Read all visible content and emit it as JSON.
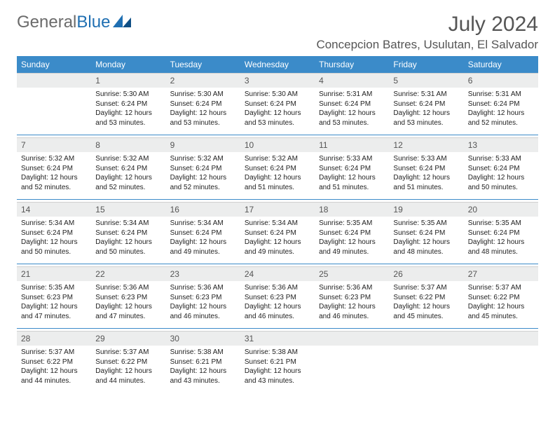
{
  "logo": {
    "part1": "General",
    "part2": "Blue"
  },
  "header": {
    "month_title": "July 2024",
    "location": "Concepcion Batres, Usulutan, El Salvador"
  },
  "colors": {
    "header_bg": "#3b8bc9",
    "header_text": "#ffffff",
    "daynum_bg": "#eceded",
    "accent": "#1f6fb2"
  },
  "weekdays": [
    "Sunday",
    "Monday",
    "Tuesday",
    "Wednesday",
    "Thursday",
    "Friday",
    "Saturday"
  ],
  "weeks": [
    {
      "nums": [
        "",
        "1",
        "2",
        "3",
        "4",
        "5",
        "6"
      ],
      "details": [
        "",
        "Sunrise: 5:30 AM\nSunset: 6:24 PM\nDaylight: 12 hours and 53 minutes.",
        "Sunrise: 5:30 AM\nSunset: 6:24 PM\nDaylight: 12 hours and 53 minutes.",
        "Sunrise: 5:30 AM\nSunset: 6:24 PM\nDaylight: 12 hours and 53 minutes.",
        "Sunrise: 5:31 AM\nSunset: 6:24 PM\nDaylight: 12 hours and 53 minutes.",
        "Sunrise: 5:31 AM\nSunset: 6:24 PM\nDaylight: 12 hours and 53 minutes.",
        "Sunrise: 5:31 AM\nSunset: 6:24 PM\nDaylight: 12 hours and 52 minutes."
      ]
    },
    {
      "nums": [
        "7",
        "8",
        "9",
        "10",
        "11",
        "12",
        "13"
      ],
      "details": [
        "Sunrise: 5:32 AM\nSunset: 6:24 PM\nDaylight: 12 hours and 52 minutes.",
        "Sunrise: 5:32 AM\nSunset: 6:24 PM\nDaylight: 12 hours and 52 minutes.",
        "Sunrise: 5:32 AM\nSunset: 6:24 PM\nDaylight: 12 hours and 52 minutes.",
        "Sunrise: 5:32 AM\nSunset: 6:24 PM\nDaylight: 12 hours and 51 minutes.",
        "Sunrise: 5:33 AM\nSunset: 6:24 PM\nDaylight: 12 hours and 51 minutes.",
        "Sunrise: 5:33 AM\nSunset: 6:24 PM\nDaylight: 12 hours and 51 minutes.",
        "Sunrise: 5:33 AM\nSunset: 6:24 PM\nDaylight: 12 hours and 50 minutes."
      ]
    },
    {
      "nums": [
        "14",
        "15",
        "16",
        "17",
        "18",
        "19",
        "20"
      ],
      "details": [
        "Sunrise: 5:34 AM\nSunset: 6:24 PM\nDaylight: 12 hours and 50 minutes.",
        "Sunrise: 5:34 AM\nSunset: 6:24 PM\nDaylight: 12 hours and 50 minutes.",
        "Sunrise: 5:34 AM\nSunset: 6:24 PM\nDaylight: 12 hours and 49 minutes.",
        "Sunrise: 5:34 AM\nSunset: 6:24 PM\nDaylight: 12 hours and 49 minutes.",
        "Sunrise: 5:35 AM\nSunset: 6:24 PM\nDaylight: 12 hours and 49 minutes.",
        "Sunrise: 5:35 AM\nSunset: 6:24 PM\nDaylight: 12 hours and 48 minutes.",
        "Sunrise: 5:35 AM\nSunset: 6:24 PM\nDaylight: 12 hours and 48 minutes."
      ]
    },
    {
      "nums": [
        "21",
        "22",
        "23",
        "24",
        "25",
        "26",
        "27"
      ],
      "details": [
        "Sunrise: 5:35 AM\nSunset: 6:23 PM\nDaylight: 12 hours and 47 minutes.",
        "Sunrise: 5:36 AM\nSunset: 6:23 PM\nDaylight: 12 hours and 47 minutes.",
        "Sunrise: 5:36 AM\nSunset: 6:23 PM\nDaylight: 12 hours and 46 minutes.",
        "Sunrise: 5:36 AM\nSunset: 6:23 PM\nDaylight: 12 hours and 46 minutes.",
        "Sunrise: 5:36 AM\nSunset: 6:23 PM\nDaylight: 12 hours and 46 minutes.",
        "Sunrise: 5:37 AM\nSunset: 6:22 PM\nDaylight: 12 hours and 45 minutes.",
        "Sunrise: 5:37 AM\nSunset: 6:22 PM\nDaylight: 12 hours and 45 minutes."
      ]
    },
    {
      "nums": [
        "28",
        "29",
        "30",
        "31",
        "",
        "",
        ""
      ],
      "details": [
        "Sunrise: 5:37 AM\nSunset: 6:22 PM\nDaylight: 12 hours and 44 minutes.",
        "Sunrise: 5:37 AM\nSunset: 6:22 PM\nDaylight: 12 hours and 44 minutes.",
        "Sunrise: 5:38 AM\nSunset: 6:21 PM\nDaylight: 12 hours and 43 minutes.",
        "Sunrise: 5:38 AM\nSunset: 6:21 PM\nDaylight: 12 hours and 43 minutes.",
        "",
        "",
        ""
      ]
    }
  ]
}
